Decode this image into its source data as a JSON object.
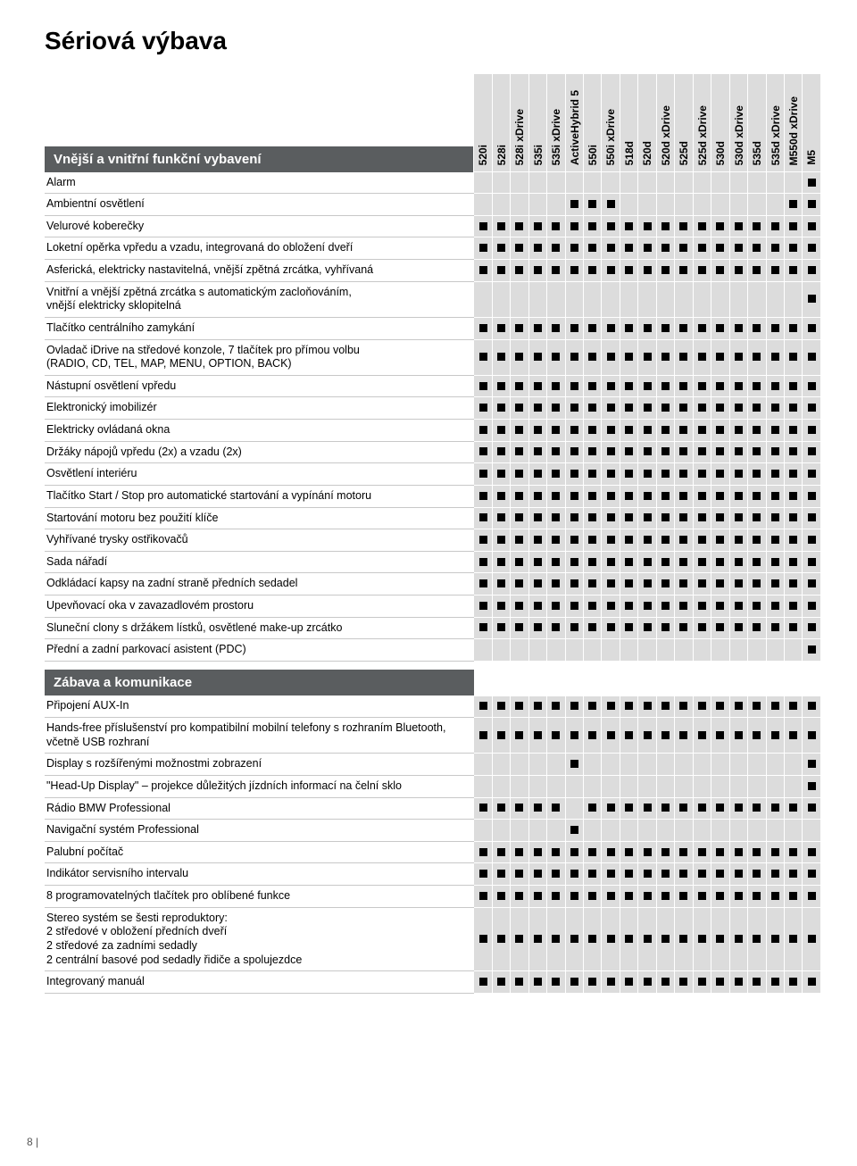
{
  "page_title": "Sériová výbava",
  "page_number": "8 |",
  "models": [
    "520i",
    "528i",
    "528i xDrive",
    "535i",
    "535i xDrive",
    "ActiveHybrid 5",
    "550i",
    "550i xDrive",
    "518d",
    "520d",
    "520d xDrive",
    "525d",
    "525d xDrive",
    "530d",
    "530d xDrive",
    "535d",
    "535d xDrive",
    "M550d xDrive",
    "M5"
  ],
  "sections": [
    {
      "title": "Vnější a vnitřní funkční vybavení",
      "rows": [
        {
          "label": "Alarm",
          "mask": "0000000000000000001"
        },
        {
          "label": "Ambientní osvětlení",
          "mask": "0000011100000000011"
        },
        {
          "label": "Velurové koberečky",
          "mask": "1111111111111111111"
        },
        {
          "label": "Loketní opěrka vpředu a vzadu, integrovaná do obložení dveří",
          "mask": "1111111111111111111"
        },
        {
          "label": "Asferická, elektricky nastavitelná, vnější zpětná zrcátka, vyhřívaná",
          "mask": "1111111111111111111"
        },
        {
          "label": "Vnitřní a vnější zpětná zrcátka s automatickým zacloňováním,\nvnější elektricky sklopitelná",
          "mask": "0000000000000000001"
        },
        {
          "label": "Tlačítko centrálního zamykání",
          "mask": "1111111111111111111"
        },
        {
          "label": "Ovladač iDrive na středové konzole, 7 tlačítek pro přímou volbu\n(RADIO, CD, TEL, MAP, MENU, OPTION, BACK)",
          "mask": "1111111111111111111"
        },
        {
          "label": "Nástupní osvětlení vpředu",
          "mask": "1111111111111111111"
        },
        {
          "label": "Elektronický imobilizér",
          "mask": "1111111111111111111"
        },
        {
          "label": "Elektricky ovládaná okna",
          "mask": "1111111111111111111"
        },
        {
          "label": "Držáky nápojů vpředu (2x) a vzadu (2x)",
          "mask": "1111111111111111111"
        },
        {
          "label": "Osvětlení interiéru",
          "mask": "1111111111111111111"
        },
        {
          "label": "Tlačítko Start / Stop pro automatické startování a vypínání motoru",
          "mask": "1111111111111111111"
        },
        {
          "label": "Startování motoru bez použití klíče",
          "mask": "1111111111111111111"
        },
        {
          "label": "Vyhřívané trysky ostřikovačů",
          "mask": "1111111111111111111"
        },
        {
          "label": "Sada nářadí",
          "mask": "1111111111111111111"
        },
        {
          "label": "Odkládací kapsy na zadní straně předních sedadel",
          "mask": "1111111111111111111"
        },
        {
          "label": "Upevňovací oka v zavazadlovém prostoru",
          "mask": "1111111111111111111"
        },
        {
          "label": "Sluneční clony s držákem lístků, osvětlené make-up zrcátko",
          "mask": "1111111111111111111"
        },
        {
          "label": "Přední a zadní parkovací asistent (PDC)",
          "mask": "0000000000000000001"
        }
      ]
    },
    {
      "title": "Zábava a komunikace",
      "rows": [
        {
          "label": "Připojení AUX-In",
          "mask": "1111111111111111111"
        },
        {
          "label": "Hands-free příslušenství pro kompatibilní mobilní telefony s rozhraním Bluetooth,\nvčetně USB rozhraní",
          "mask": "1111111111111111111"
        },
        {
          "label": "Display s rozšířenými možnostmi zobrazení",
          "mask": "0000010000000000001"
        },
        {
          "label": "\"Head-Up Display\" – projekce důležitých jízdních informací na čelní sklo",
          "mask": "0000000000000000001"
        },
        {
          "label": "Rádio BMW Professional",
          "mask": "1111101111111111111"
        },
        {
          "label": "Navigační systém Professional",
          "mask": "0000010000000000000"
        },
        {
          "label": "Palubní počítač",
          "mask": "1111111111111111111"
        },
        {
          "label": "Indikátor servisního intervalu",
          "mask": "1111111111111111111"
        },
        {
          "label": "8 programovatelných tlačítek pro oblíbené funkce",
          "mask": "1111111111111111111"
        },
        {
          "label": "Stereo systém se šesti reproduktory:\n2 středové v obložení předních dveří\n2 středové za zadními sedadly\n2 centrální basové pod sedadly řidiče a spolujezdce",
          "mask": "1111111111111111111"
        },
        {
          "label": "Integrovaný manuál",
          "mask": "1111111111111111111"
        }
      ]
    }
  ]
}
